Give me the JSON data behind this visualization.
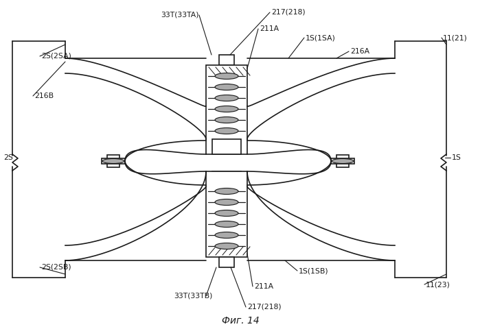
{
  "title": "Фиг. 14",
  "background": "#ffffff",
  "line_color": "#1a1a1a",
  "gray_color": "#aaaaaa",
  "fig_width": 6.99,
  "fig_height": 4.8,
  "labels": {
    "33T_33TA": "33T(33TA)",
    "217_218_top": "217(218)",
    "211A_top": "211A",
    "1S_1SA": "1S(1SA)",
    "216A": "216A",
    "11_21": "11(21)",
    "2S_2SA": "2S(2SA)",
    "216B": "216B",
    "2S_left": "2S",
    "1S_right": "1S",
    "2S_2SB": "2S(2SB)",
    "33T_33TB": "33T(33TB)",
    "211A_bot": "211A",
    "217_218_bot": "217(218)",
    "1S_1SB": "1S(1SB)",
    "11_23": "11(23)"
  }
}
